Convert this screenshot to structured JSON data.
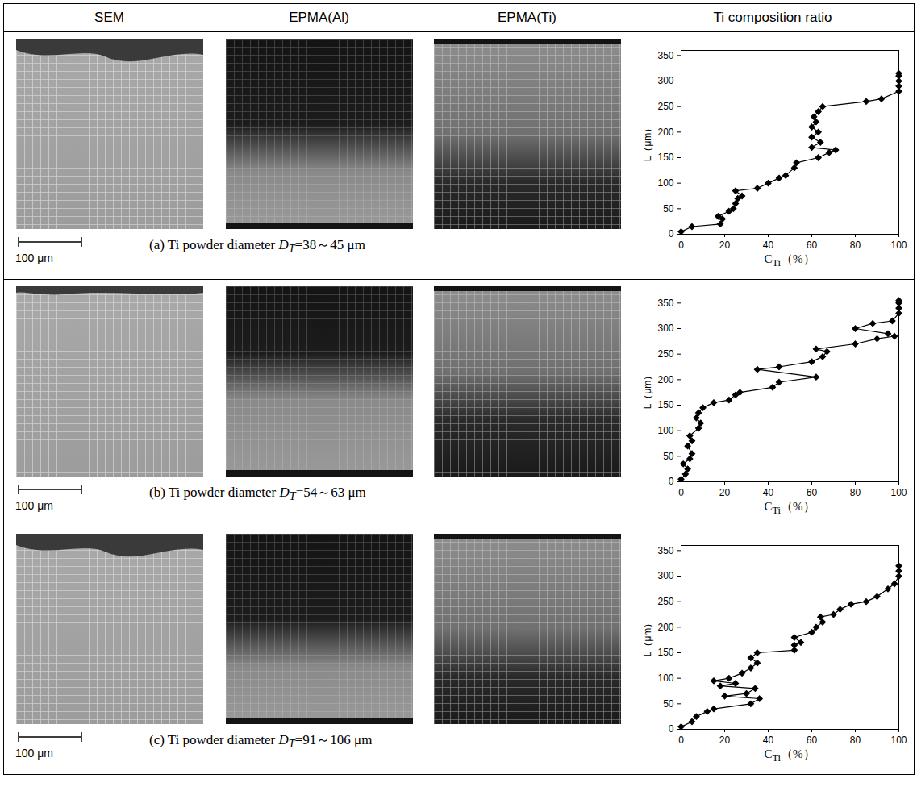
{
  "figure": {
    "headers": [
      "SEM",
      "EPMA(Al)",
      "EPMA(Ti)",
      "Ti composition ratio"
    ],
    "scale_bar": "100 μm",
    "panels": [
      {
        "caption": {
          "prefix": "(a) Ti powder diameter ",
          "symbol": "D",
          "subscript": "T",
          "suffix": "=38～45 μm"
        }
      },
      {
        "caption": {
          "prefix": "(b) Ti powder diameter ",
          "symbol": "D",
          "subscript": "T",
          "suffix": "=54～63 μm"
        }
      },
      {
        "caption": {
          "prefix": "(c) Ti powder diameter ",
          "symbol": "D",
          "subscript": "T",
          "suffix": "=91～106 μm"
        }
      }
    ]
  },
  "chart_data": [
    {
      "type": "line",
      "x_label": {
        "text": "C",
        "subscript": "Ti",
        "unit": "（%）"
      },
      "y_label": "L（μm）",
      "xlim": [
        0,
        100
      ],
      "xticks": [
        0,
        20,
        40,
        60,
        80,
        100
      ],
      "ylim": [
        0,
        360
      ],
      "yticks": [
        0,
        50,
        100,
        150,
        200,
        250,
        300,
        350
      ],
      "series": [
        {
          "color": "#000000",
          "marker": "diamond",
          "x": [
            0,
            5,
            18,
            19,
            17,
            22,
            24,
            25,
            26,
            28,
            25,
            35,
            40,
            45,
            48,
            52,
            53,
            63,
            68,
            71,
            60,
            64,
            60,
            63,
            60,
            62,
            61,
            63,
            65,
            85,
            92,
            100,
            100,
            100,
            100,
            100
          ],
          "values": [
            5,
            15,
            20,
            30,
            35,
            45,
            50,
            60,
            70,
            75,
            85,
            90,
            100,
            110,
            115,
            130,
            140,
            150,
            160,
            165,
            170,
            180,
            190,
            200,
            210,
            220,
            230,
            240,
            250,
            260,
            265,
            280,
            290,
            300,
            310,
            315
          ]
        }
      ]
    },
    {
      "type": "line",
      "x_label": {
        "text": "C",
        "subscript": "Ti",
        "unit": "（%）"
      },
      "y_label": "L（μm）",
      "xlim": [
        0,
        100
      ],
      "xticks": [
        0,
        20,
        40,
        60,
        80,
        100
      ],
      "ylim": [
        0,
        360
      ],
      "yticks": [
        0,
        50,
        100,
        150,
        200,
        250,
        300,
        350
      ],
      "series": [
        {
          "color": "#000000",
          "marker": "diamond",
          "x": [
            0,
            2,
            3,
            1,
            4,
            5,
            3,
            5,
            4,
            8,
            9,
            7,
            8,
            10,
            15,
            22,
            25,
            27,
            42,
            45,
            62,
            35,
            45,
            60,
            65,
            67,
            62,
            80,
            90,
            98,
            95,
            80,
            88,
            97,
            100,
            100,
            100,
            100
          ],
          "values": [
            5,
            15,
            25,
            35,
            45,
            55,
            70,
            80,
            90,
            105,
            115,
            125,
            135,
            145,
            155,
            160,
            170,
            175,
            185,
            195,
            205,
            220,
            225,
            235,
            245,
            255,
            260,
            270,
            280,
            285,
            290,
            300,
            310,
            315,
            330,
            340,
            350,
            355
          ]
        }
      ]
    },
    {
      "type": "line",
      "x_label": {
        "text": "C",
        "subscript": "Ti",
        "unit": "（%）"
      },
      "y_label": "L（μm）",
      "xlim": [
        0,
        100
      ],
      "xticks": [
        0,
        20,
        40,
        60,
        80,
        100
      ],
      "ylim": [
        0,
        360
      ],
      "yticks": [
        0,
        50,
        100,
        150,
        200,
        250,
        300,
        350
      ],
      "series": [
        {
          "color": "#000000",
          "marker": "diamond",
          "x": [
            0,
            5,
            7,
            12,
            15,
            32,
            36,
            20,
            30,
            34,
            18,
            25,
            15,
            22,
            28,
            32,
            35,
            32,
            35,
            52,
            52,
            55,
            52,
            60,
            62,
            65,
            64,
            70,
            73,
            78,
            85,
            90,
            95,
            98,
            100,
            100,
            100
          ],
          "values": [
            5,
            15,
            25,
            35,
            40,
            50,
            60,
            65,
            70,
            80,
            85,
            90,
            95,
            100,
            110,
            120,
            130,
            140,
            150,
            155,
            165,
            170,
            180,
            190,
            200,
            210,
            220,
            225,
            235,
            245,
            250,
            260,
            275,
            285,
            300,
            310,
            320
          ]
        }
      ]
    }
  ]
}
